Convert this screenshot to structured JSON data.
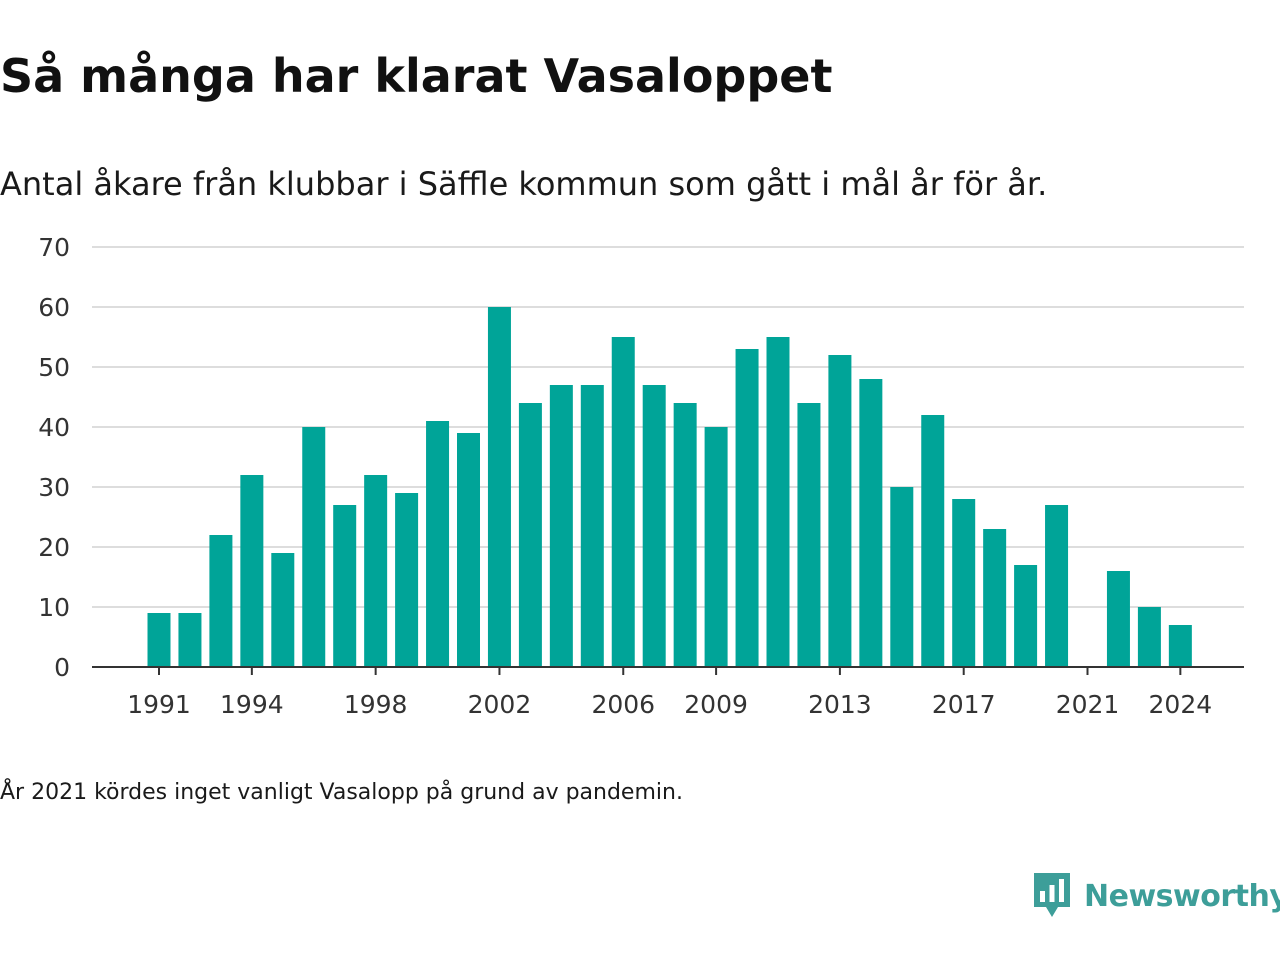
{
  "header": {
    "title": "Så många har klarat Vasaloppet",
    "subtitle": "Antal åkare från klubbar i Säffle kommun som gått i mål år för år."
  },
  "footer": {
    "note": "År 2021 kördes inget vanligt Vasalopp på grund av pandemin.",
    "brand": "Newsworthy",
    "brand_icon": "newsworthy-logo-icon"
  },
  "colors": {
    "bar": "#00a498",
    "grid": "#dddddd",
    "axis": "#333333",
    "brand": "#3d9e99"
  },
  "chart_data": {
    "type": "bar",
    "title": "Så många har klarat Vasaloppet",
    "subtitle": "Antal åkare från klubbar i Säffle kommun som gått i mål år för år.",
    "xlabel": "",
    "ylabel": "",
    "ylim": [
      0,
      70
    ],
    "yticks": [
      0,
      10,
      20,
      30,
      40,
      50,
      60,
      70
    ],
    "xticks": [
      "1991",
      "1994",
      "1998",
      "2002",
      "2006",
      "2009",
      "2013",
      "2017",
      "2021",
      "2024"
    ],
    "grid": true,
    "legend": "none",
    "categories": [
      "1991",
      "1992",
      "1993",
      "1994",
      "1995",
      "1996",
      "1997",
      "1998",
      "1999",
      "2000",
      "2001",
      "2002",
      "2003",
      "2004",
      "2005",
      "2006",
      "2007",
      "2008",
      "2009",
      "2010",
      "2011",
      "2012",
      "2013",
      "2014",
      "2015",
      "2016",
      "2017",
      "2018",
      "2019",
      "2020",
      "2021",
      "2022",
      "2023",
      "2024"
    ],
    "values": [
      9,
      9,
      22,
      32,
      19,
      40,
      27,
      32,
      29,
      41,
      39,
      60,
      44,
      47,
      47,
      55,
      47,
      44,
      40,
      53,
      55,
      44,
      52,
      48,
      30,
      42,
      28,
      23,
      17,
      27,
      0,
      16,
      10,
      7
    ]
  }
}
